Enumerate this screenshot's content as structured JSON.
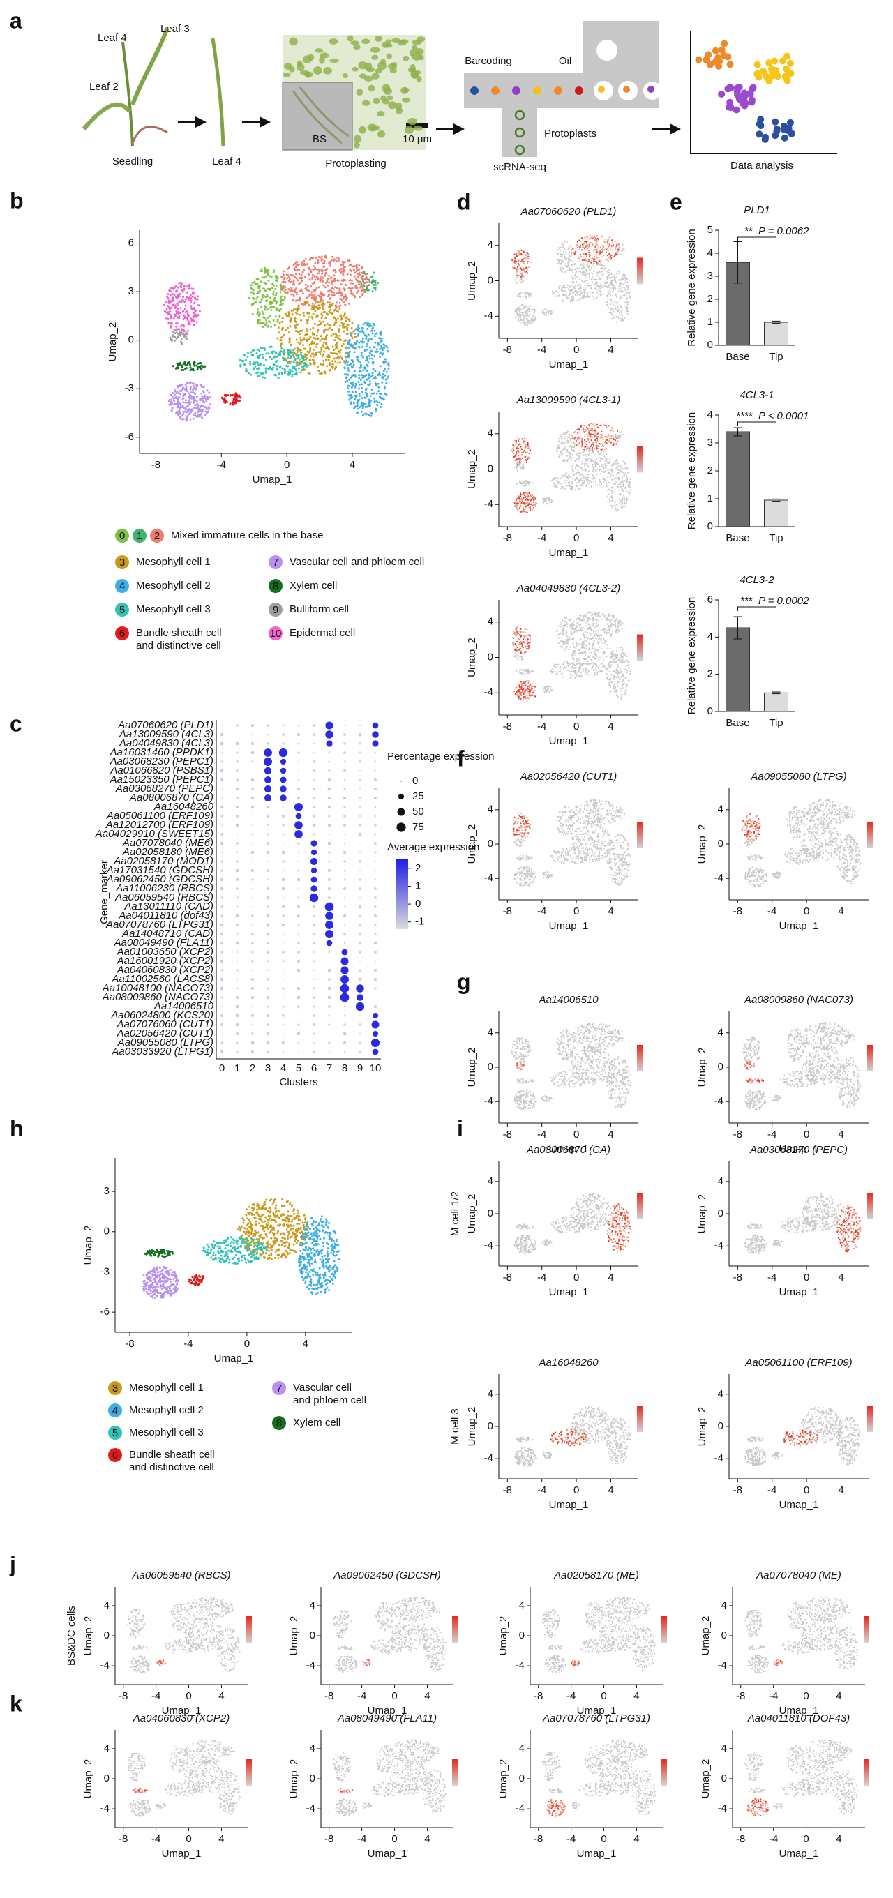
{
  "panel_labels": [
    "a",
    "b",
    "c",
    "d",
    "e",
    "f",
    "g",
    "h",
    "i",
    "j",
    "k"
  ],
  "illustration": {
    "texts": [
      "Leaf 4",
      "Leaf 3",
      "Leaf 2",
      "Seedling",
      "Leaf 4",
      "Protoplasting",
      "BS",
      "10 μm",
      "Barcoding",
      "Oil",
      "Protoplasts",
      "scRNA-seq",
      "Data analysis"
    ]
  },
  "chart_data": [
    {
      "type": "umap",
      "xlabel": "Umap_1",
      "ylabel": "Umap_2",
      "xlim": [
        -9,
        7.2
      ],
      "ylim": [
        -7,
        6.8
      ],
      "xticks": [
        -8,
        -4,
        0,
        4
      ],
      "yticks": [
        -6,
        -3,
        0,
        3,
        6
      ],
      "cluster_colors": [
        "#7cc243",
        "#3db56f",
        "#f07c74",
        "#c99a1c",
        "#3eaee8",
        "#2ec4b6",
        "#e31a1c",
        "#b991f2",
        "#12701f",
        "#9e9e9e",
        "#f062d0"
      ],
      "legend": [
        {
          "clusters": [
            "0",
            "1",
            "2"
          ],
          "label": [
            "Mixed immature cells in the base"
          ]
        },
        {
          "clusters": [
            "3"
          ],
          "label": [
            "Mesophyll cell 1"
          ]
        },
        {
          "clusters": [
            "4"
          ],
          "label": [
            "Mesophyll cell 2"
          ]
        },
        {
          "clusters": [
            "5"
          ],
          "label": [
            "Mesophyll cell 3"
          ]
        },
        {
          "clusters": [
            "6"
          ],
          "label": [
            "Bundle sheath cell",
            "and distinctive cell"
          ]
        },
        {
          "clusters": [
            "7"
          ],
          "label": [
            "Vascular cell and phloem cell"
          ]
        },
        {
          "clusters": [
            "8"
          ],
          "label": [
            "Xylem cell"
          ]
        },
        {
          "clusters": [
            "9"
          ],
          "label": [
            "Bulliform cell"
          ]
        },
        {
          "clusters": [
            "10"
          ],
          "label": [
            "Epidermal cell"
          ]
        }
      ]
    },
    {
      "type": "umap",
      "title": "Aa07060620 (PLD1)",
      "xlabel": "Umap_1",
      "ylabel": "Umap_2",
      "xlim": [
        -9,
        7.2
      ],
      "ylim": [
        -6.5,
        6.5
      ],
      "xticks": [
        -8,
        -4,
        0,
        4
      ],
      "yticks": [
        -4,
        0,
        4
      ]
    },
    {
      "type": "umap",
      "title": "Aa13009590 (4CL3-1)",
      "xlabel": "Umap_1",
      "ylabel": "Umap_2",
      "xlim": [
        -9,
        7.2
      ],
      "ylim": [
        -6.5,
        6.5
      ],
      "xticks": [
        -8,
        -4,
        0,
        4
      ],
      "yticks": [
        -4,
        0,
        4
      ]
    },
    {
      "type": "umap",
      "title": "Aa04049830 (4CL3-2)",
      "xlabel": "Umap_1",
      "ylabel": "Umap_2",
      "xlim": [
        -9,
        7.2
      ],
      "ylim": [
        -6.5,
        6.5
      ],
      "xticks": [
        -8,
        -4,
        0,
        4
      ],
      "yticks": [
        -4,
        0,
        4
      ]
    },
    {
      "type": "bar",
      "title": "PLD1",
      "ylabel": "Relative gene expression",
      "categories": [
        "Base",
        "Tip"
      ],
      "values": [
        3.6,
        1.0
      ],
      "errors": [
        0.9,
        0.05
      ],
      "colors": [
        "#6b6b6b",
        "#dcdcdc"
      ],
      "ylim": [
        0,
        5
      ],
      "yticks": [
        0,
        1,
        2,
        3,
        4,
        5
      ],
      "significance": "**",
      "p_label": "P = 0.0062"
    },
    {
      "type": "bar",
      "title": "4CL3-1",
      "ylabel": "Relative gene expression",
      "categories": [
        "Base",
        "Tip"
      ],
      "values": [
        3.4,
        0.95
      ],
      "errors": [
        0.15,
        0.04
      ],
      "colors": [
        "#6b6b6b",
        "#dcdcdc"
      ],
      "ylim": [
        0,
        4
      ],
      "yticks": [
        0,
        1,
        2,
        3,
        4
      ],
      "significance": "****",
      "p_label": "P < 0.0001"
    },
    {
      "type": "bar",
      "title": "4CL3-2",
      "ylabel": "Relative gene expression",
      "categories": [
        "Base",
        "Tip"
      ],
      "values": [
        4.5,
        1.0
      ],
      "errors": [
        0.6,
        0.05
      ],
      "colors": [
        "#6b6b6b",
        "#dcdcdc"
      ],
      "ylim": [
        0,
        6
      ],
      "yticks": [
        0,
        2,
        4,
        6
      ],
      "significance": "***",
      "p_label": "P = 0.0002"
    },
    {
      "type": "dotplot",
      "ylabel": "Gene_marker",
      "xlabel": "Clusters",
      "categories": [
        "0",
        "1",
        "2",
        "3",
        "4",
        "5",
        "6",
        "7",
        "8",
        "9",
        "10"
      ],
      "genes": [
        "Aa07060620 (PLD1)",
        "Aa13009590 (4CL3)",
        "Aa04049830 (4CL3)",
        "Aa16031460 (PPDK1)",
        "Aa03068230 (PEPC1)",
        "Aa01066820 (PSBS1)",
        "Aa15023350 (PEPC1)",
        "Aa03068270 (PEPC)",
        "Aa08006870 (CA)",
        "Aa16048260",
        "Aa05061100 (ERF109)",
        "Aa12012700 (ERF109)",
        "Aa04029910 (SWEET15)",
        "Aa07078040 (ME6)",
        "Aa02058180 (ME6)",
        "Aa02058170 (MOD1)",
        "Aa17031540 (GDCSH)",
        "Aa09062450 (GDCSH)",
        "Aa11006230 (RBCS)",
        "Aa06059540 (RBCS)",
        "Aa13011110 (CAD)",
        "Aa04011810 (dof43)",
        "Aa07078760 (LTPG31)",
        "Aa14048710 (CAD)",
        "Aa08049490 (FLA11)",
        "Aa01003650 (XCP2)",
        "Aa16001920 (XCP2)",
        "Aa04060830 (XCP2)",
        "Aa11002560 (LACS8)",
        "Aa10048100 (NACO73)",
        "Aa08009860 (NACO73)",
        "Aa14006510",
        "Aa06024800 (KCS20)",
        "Aa07076060 (CUT1)",
        "Aa02056420 (CUT1)",
        "Aa09055080 (LTPG)",
        "Aa03033920 (LTPG1)"
      ],
      "size_legend": {
        "title": "Percentage expression",
        "values": [
          0,
          25,
          50,
          75
        ]
      },
      "color_legend": {
        "title": "Average expression",
        "lim": [
          -1.4,
          2.5
        ],
        "ticks": [
          2,
          1,
          0,
          -1
        ]
      }
    },
    {
      "type": "umap",
      "title": "Aa02056420 (CUT1)",
      "xlabel": "Umap_1",
      "ylabel": "Umap_2",
      "xlim": [
        -9,
        7.2
      ],
      "ylim": [
        -6.5,
        6.5
      ],
      "xticks": [
        -8,
        -4,
        0,
        4
      ],
      "yticks": [
        -4,
        0,
        4
      ]
    },
    {
      "type": "umap",
      "title": "Aa09055080 (LTPG)",
      "xlabel": "Umap_1",
      "ylabel": "Umap_2",
      "xlim": [
        -9,
        7.2
      ],
      "ylim": [
        -6.5,
        6.5
      ],
      "xticks": [
        -8,
        -4,
        0,
        4
      ],
      "yticks": [
        -4,
        0,
        4
      ]
    },
    {
      "type": "umap",
      "title": "Aa14006510",
      "xlabel": "Umap_1",
      "ylabel": "Umap_2",
      "xlim": [
        -9,
        7.2
      ],
      "ylim": [
        -6.5,
        6.5
      ],
      "xticks": [
        -8,
        -4,
        0,
        4
      ],
      "yticks": [
        -4,
        0,
        4
      ]
    },
    {
      "type": "umap",
      "title": "Aa08009860 (NAC073)",
      "xlabel": "Umap_1",
      "ylabel": "Umap_2",
      "xlim": [
        -9,
        7.2
      ],
      "ylim": [
        -6.5,
        6.5
      ],
      "xticks": [
        -8,
        -4,
        0,
        4
      ],
      "yticks": [
        -4,
        0,
        4
      ]
    },
    {
      "type": "umap",
      "xlabel": "Umap_1",
      "ylabel": "Umap_2",
      "xlim": [
        -9,
        7.2
      ],
      "ylim": [
        -7.5,
        5.5
      ],
      "xticks": [
        -8,
        -4,
        0,
        4
      ],
      "yticks": [
        -6,
        -3,
        0,
        3
      ],
      "cluster_colors": [
        "#7cc243",
        "#3db56f",
        "#f07c74",
        "#c99a1c",
        "#3eaee8",
        "#2ec4b6",
        "#e31a1c",
        "#b991f2",
        "#12701f",
        "#9e9e9e",
        "#f062d0"
      ],
      "legend": [
        {
          "clusters": [
            "3"
          ],
          "label": [
            "Mesophyll cell 1"
          ]
        },
        {
          "clusters": [
            "4"
          ],
          "label": [
            "Mesophyll cell 2"
          ]
        },
        {
          "clusters": [
            "5"
          ],
          "label": [
            "Mesophyll cell 3"
          ]
        },
        {
          "clusters": [
            "6"
          ],
          "label": [
            "Bundle sheath cell",
            "and distinctive cell"
          ]
        },
        {
          "clusters": [
            "7"
          ],
          "label": [
            "Vascular cell",
            "and phloem cell"
          ]
        },
        {
          "clusters": [
            "8"
          ],
          "label": [
            "Xylem cell"
          ]
        }
      ]
    },
    {
      "type": "umap",
      "title": "Aa08006870 (CA)",
      "row_label": "M cell 1/2",
      "xlabel": "Umap_1",
      "ylabel": "Umap_2",
      "xlim": [
        -9,
        7.2
      ],
      "ylim": [
        -6.5,
        6.5
      ],
      "xticks": [
        -8,
        -4,
        0,
        4
      ],
      "yticks": [
        -4,
        0,
        4
      ]
    },
    {
      "type": "umap",
      "title": "Aa03068270 (PEPC)",
      "xlabel": "Umap_1",
      "ylabel": "Umap_2",
      "xlim": [
        -9,
        7.2
      ],
      "ylim": [
        -6.5,
        6.5
      ],
      "xticks": [
        -8,
        -4,
        0,
        4
      ],
      "yticks": [
        -4,
        0,
        4
      ]
    },
    {
      "type": "umap",
      "title": "Aa16048260",
      "row_label": "M cell 3",
      "xlabel": "Umap_1",
      "ylabel": "Umap_2",
      "xlim": [
        -9,
        7.2
      ],
      "ylim": [
        -6.5,
        6.5
      ],
      "xticks": [
        -8,
        -4,
        0,
        4
      ],
      "yticks": [
        -4,
        0,
        4
      ]
    },
    {
      "type": "umap",
      "title": "Aa05061100 (ERF109)",
      "xlabel": "Umap_1",
      "ylabel": "Umap_2",
      "xlim": [
        -9,
        7.2
      ],
      "ylim": [
        -6.5,
        6.5
      ],
      "xticks": [
        -8,
        -4,
        0,
        4
      ],
      "yticks": [
        -4,
        0,
        4
      ]
    },
    {
      "type": "umap",
      "title": "Aa06059540 (RBCS)",
      "row_label": "BS&DC cells",
      "xlabel": "Umap_1",
      "ylabel": "Umap_2",
      "xlim": [
        -9,
        7.2
      ],
      "ylim": [
        -6.5,
        6.5
      ],
      "xticks": [
        -8,
        -4,
        0,
        4
      ],
      "yticks": [
        -4,
        0,
        4
      ]
    },
    {
      "type": "umap",
      "title": "Aa09062450 (GDCSH)",
      "xlabel": "Umap_1",
      "ylabel": "Umap_2",
      "xlim": [
        -9,
        7.2
      ],
      "ylim": [
        -6.5,
        6.5
      ],
      "xticks": [
        -8,
        -4,
        0,
        4
      ],
      "yticks": [
        -4,
        0,
        4
      ]
    },
    {
      "type": "umap",
      "title": "Aa02058170 (ME)",
      "xlabel": "Umap_1",
      "ylabel": "Umap_2",
      "xlim": [
        -9,
        7.2
      ],
      "ylim": [
        -6.5,
        6.5
      ],
      "xticks": [
        -8,
        -4,
        0,
        4
      ],
      "yticks": [
        -4,
        0,
        4
      ]
    },
    {
      "type": "umap",
      "title": "Aa07078040 (ME)",
      "xlabel": "Umap_1",
      "ylabel": "Umap_2",
      "xlim": [
        -9,
        7.2
      ],
      "ylim": [
        -6.5,
        6.5
      ],
      "xticks": [
        -8,
        -4,
        0,
        4
      ],
      "yticks": [
        -4,
        0,
        4
      ]
    },
    {
      "type": "umap",
      "title": "Aa04060830 (XCP2)",
      "xlabel": "Umap_1",
      "ylabel": "Umap_2",
      "xlim": [
        -9,
        7.2
      ],
      "ylim": [
        -6.5,
        6.5
      ],
      "xticks": [
        -8,
        -4,
        0,
        4
      ],
      "yticks": [
        -4,
        0,
        4
      ]
    },
    {
      "type": "umap",
      "title": "Aa08049490 (FLA11)",
      "xlabel": "Umap_1",
      "ylabel": "Umap_2",
      "xlim": [
        -9,
        7.2
      ],
      "ylim": [
        -6.5,
        6.5
      ],
      "xticks": [
        -8,
        -4,
        0,
        4
      ],
      "yticks": [
        -4,
        0,
        4
      ]
    },
    {
      "type": "umap",
      "title": "Aa07078760 (LTPG31)",
      "xlabel": "Umap_1",
      "ylabel": "Umap_2",
      "xlim": [
        -9,
        7.2
      ],
      "ylim": [
        -6.5,
        6.5
      ],
      "xticks": [
        -8,
        -4,
        0,
        4
      ],
      "yticks": [
        -4,
        0,
        4
      ]
    },
    {
      "type": "umap",
      "title": "Aa04011810 (DOF43)",
      "xlabel": "Umap_1",
      "ylabel": "Umap_2",
      "xlim": [
        -9,
        7.2
      ],
      "ylim": [
        -6.5,
        6.5
      ],
      "xticks": [
        -8,
        -4,
        0,
        4
      ],
      "yticks": [
        -4,
        0,
        4
      ]
    }
  ]
}
